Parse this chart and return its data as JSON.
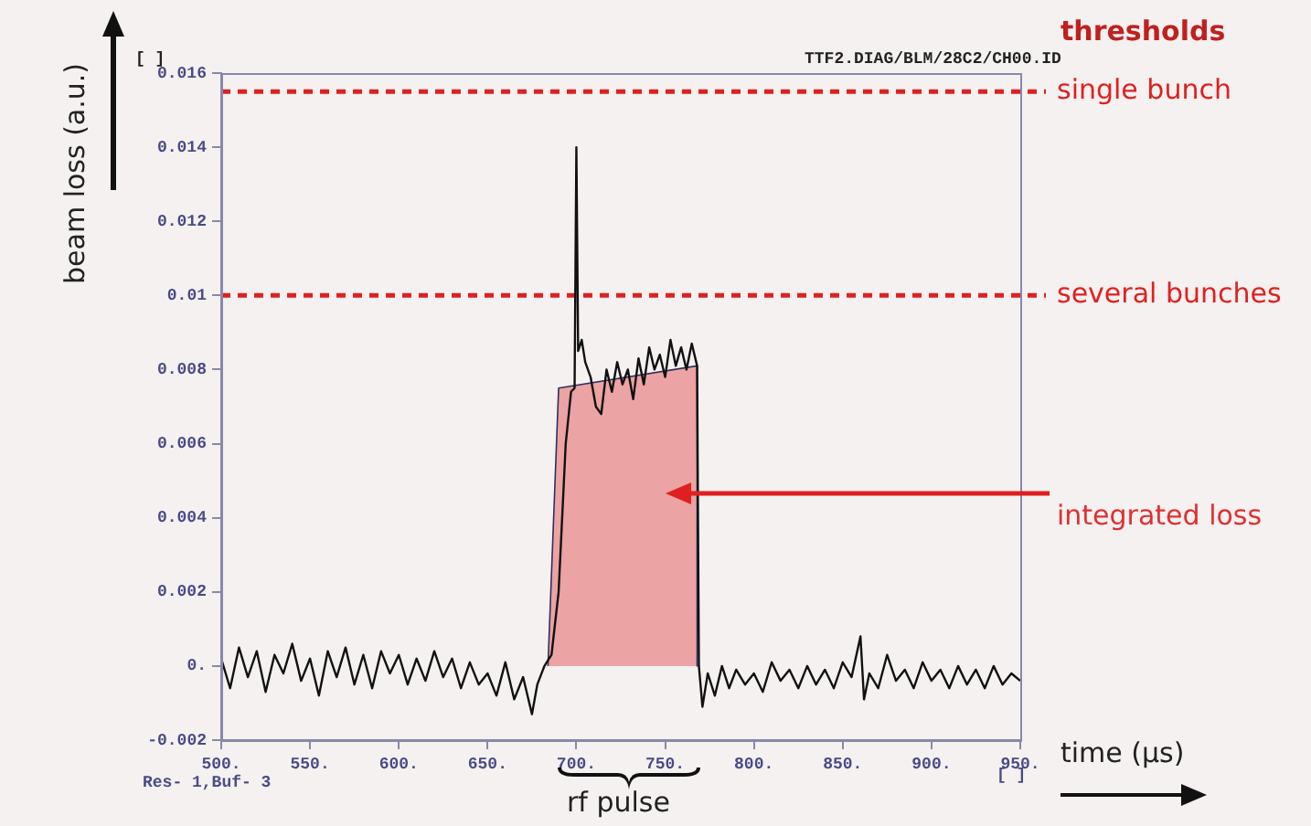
{
  "chart_data": {
    "type": "line",
    "xlabel": "time (µs)",
    "ylabel": "beam loss (a.u.)",
    "legend_title": "thresholds",
    "xlim": [
      500,
      950
    ],
    "xticks": [
      {
        "value": 500,
        "label": "500."
      },
      {
        "value": 550,
        "label": "550."
      },
      {
        "value": 600,
        "label": "600."
      },
      {
        "value": 650,
        "label": "650."
      },
      {
        "value": 700,
        "label": "700."
      },
      {
        "value": 750,
        "label": "750."
      },
      {
        "value": 800,
        "label": "800."
      },
      {
        "value": 850,
        "label": "850."
      },
      {
        "value": 900,
        "label": "900."
      },
      {
        "value": 950,
        "label": "950."
      }
    ],
    "ylim": [
      -0.002,
      0.016
    ],
    "yticks": [
      -0.002,
      {
        "value": 0,
        "label": "0."
      },
      0.002,
      0.004,
      0.006,
      0.008,
      0.01,
      0.012,
      0.014,
      0.016
    ],
    "grid": false,
    "legend": false,
    "marker": "none",
    "line_style": "solid",
    "series": [
      {
        "type": "area",
        "name": "integrated loss",
        "color": "#e03030",
        "x": [
          684,
          690,
          768,
          768
        ],
        "values": [
          0,
          0.0075,
          0.0081,
          0
        ]
      },
      {
        "type": "line",
        "color": "#111111",
        "x": [
          500,
          505,
          510,
          515,
          520,
          525,
          530,
          535,
          540,
          545,
          550,
          555,
          560,
          565,
          570,
          575,
          580,
          585,
          590,
          595,
          600,
          605,
          610,
          615,
          620,
          625,
          630,
          635,
          640,
          645,
          650,
          655,
          660,
          665,
          670,
          675,
          678,
          682,
          686,
          690,
          694,
          697,
          699,
          700,
          701,
          703,
          705,
          708,
          711,
          714,
          717,
          720,
          723,
          726,
          729,
          732,
          735,
          738,
          741,
          744,
          747,
          750,
          753,
          756,
          759,
          762,
          765,
          768,
          769,
          771,
          774,
          778,
          782,
          786,
          790,
          795,
          800,
          805,
          810,
          815,
          820,
          825,
          830,
          835,
          840,
          845,
          850,
          855,
          860,
          862,
          865,
          870,
          875,
          880,
          885,
          890,
          895,
          900,
          905,
          910,
          915,
          920,
          925,
          930,
          935,
          940,
          945,
          950
        ],
        "values": [
          0.0002,
          -0.0006,
          0.0005,
          -0.0003,
          0.0004,
          -0.0007,
          0.0003,
          -0.0002,
          0.0006,
          -0.0004,
          0.0002,
          -0.0008,
          0.0004,
          -0.0003,
          0.0005,
          -0.0005,
          0.0003,
          -0.0006,
          0.0004,
          -0.0002,
          0.0003,
          -0.0005,
          0.0002,
          -0.0004,
          0.0004,
          -0.0003,
          0.0002,
          -0.0006,
          0.0001,
          -0.0005,
          -0.0002,
          -0.0008,
          0.0001,
          -0.0009,
          -0.0003,
          -0.0013,
          -0.0005,
          0,
          0.0003,
          0.002,
          0.006,
          0.0074,
          0.0075,
          0.014,
          0.0085,
          0.0088,
          0.0082,
          0.0078,
          0.007,
          0.0068,
          0.008,
          0.0074,
          0.0082,
          0.0076,
          0.008,
          0.0072,
          0.0083,
          0.0076,
          0.0086,
          0.008,
          0.0084,
          0.0078,
          0.0088,
          0.0081,
          0.0086,
          0.008,
          0.0087,
          0.0081,
          0,
          -0.0011,
          -0.0002,
          -0.0008,
          0,
          -0.0006,
          -0.0001,
          -0.0005,
          -0.0002,
          -0.0007,
          0.0001,
          -0.0004,
          -0.0001,
          -0.0006,
          0,
          -0.0005,
          -0.0001,
          -0.0006,
          0.0001,
          -0.0003,
          0.0008,
          -0.0009,
          -0.0002,
          -0.0006,
          0.0003,
          -0.0004,
          -0.0001,
          -0.0006,
          0.0001,
          -0.0004,
          -0.0001,
          -0.0006,
          0,
          -0.0005,
          -0.0001,
          -0.0006,
          0,
          -0.0005,
          -0.0002,
          -0.0004
        ]
      }
    ],
    "ref_lines": [
      {
        "axis": "y",
        "value": 0.0155,
        "label": "single bunch",
        "color": "#e02020",
        "line_style": "dashed"
      },
      {
        "axis": "y",
        "value": 0.01,
        "label": "several bunches",
        "color": "#e02020",
        "line_style": "dashed"
      }
    ],
    "annotations": [
      "TTF2.DIAG/BLM/28C2/CH00.ID",
      "Res- 1,Buf- 3",
      "[ ]",
      "[ ]",
      "rf pulse"
    ]
  }
}
